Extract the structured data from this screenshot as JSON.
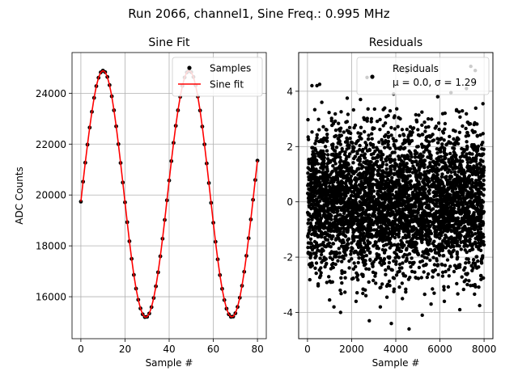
{
  "figure": {
    "suptitle": "Run 2066, channel1, Sine Freq.: 0.995 MHz"
  },
  "chart_data": [
    {
      "type": "line",
      "title": "Sine Fit",
      "xlabel": "Sample #",
      "ylabel": "ADC Counts",
      "xlim": [
        -4,
        84
      ],
      "ylim": [
        14350,
        25600
      ],
      "xticks": [
        0,
        20,
        40,
        60,
        80
      ],
      "yticks": [
        16000,
        18000,
        20000,
        22000,
        24000
      ],
      "grid": true,
      "legend": "top-right",
      "series": [
        {
          "name": "Samples",
          "kind": "scatter",
          "color": "#000000",
          "x": [
            0,
            1,
            2,
            3,
            4,
            5,
            6,
            7,
            8,
            9,
            10,
            11,
            12,
            13,
            14,
            15,
            16,
            17,
            18,
            19,
            20,
            21,
            22,
            23,
            24,
            25,
            26,
            27,
            28,
            29,
            30,
            31,
            32,
            33,
            34,
            35,
            36,
            37,
            38,
            39,
            40,
            41,
            42,
            43,
            44,
            45,
            46,
            47,
            48,
            49,
            50,
            51,
            52,
            53,
            54,
            55,
            56,
            57,
            58,
            59,
            60,
            61,
            62,
            63,
            64,
            65,
            66,
            67,
            68,
            69,
            70,
            71,
            72,
            73,
            74,
            75,
            76,
            77,
            78,
            79,
            80
          ],
          "y": [
            19740,
            20520,
            21270,
            21980,
            22650,
            23270,
            23820,
            24280,
            24610,
            24820,
            24890,
            24830,
            24640,
            24320,
            23880,
            23330,
            22700,
            22000,
            21260,
            20490,
            19710,
            18930,
            18180,
            17490,
            16860,
            16320,
            15880,
            15540,
            15310,
            15200,
            15210,
            15340,
            15590,
            15950,
            16410,
            16960,
            17590,
            18280,
            19020,
            19790,
            20570,
            21330,
            22050,
            22720,
            23330,
            23860,
            24290,
            24620,
            24820,
            24890,
            24830,
            24640,
            24310,
            23870,
            23320,
            22690,
            21990,
            21240,
            20470,
            19690,
            18910,
            18160,
            17470,
            16850,
            16310,
            15870,
            15530,
            15310,
            15210,
            15220,
            15350,
            15600,
            15960,
            16430,
            16980,
            17610,
            18300,
            19040,
            19810,
            20590,
            21350
          ]
        },
        {
          "name": "Sine fit",
          "kind": "line",
          "color": "#ff0000",
          "x": [
            0,
            1,
            2,
            3,
            4,
            5,
            6,
            7,
            8,
            9,
            10,
            11,
            12,
            13,
            14,
            15,
            16,
            17,
            18,
            19,
            20,
            21,
            22,
            23,
            24,
            25,
            26,
            27,
            28,
            29,
            30,
            31,
            32,
            33,
            34,
            35,
            36,
            37,
            38,
            39,
            40,
            41,
            42,
            43,
            44,
            45,
            46,
            47,
            48,
            49,
            50,
            51,
            52,
            53,
            54,
            55,
            56,
            57,
            58,
            59,
            60,
            61,
            62,
            63,
            64,
            65,
            66,
            67,
            68,
            69,
            70,
            71,
            72,
            73,
            74,
            75,
            76,
            77,
            78,
            79,
            80
          ],
          "y": [
            19740,
            20520,
            21270,
            21980,
            22650,
            23270,
            23820,
            24280,
            24610,
            24820,
            24890,
            24830,
            24640,
            24320,
            23880,
            23330,
            22700,
            22000,
            21260,
            20490,
            19710,
            18930,
            18180,
            17490,
            16860,
            16320,
            15880,
            15540,
            15310,
            15200,
            15210,
            15340,
            15590,
            15950,
            16410,
            16960,
            17590,
            18280,
            19020,
            19790,
            20570,
            21330,
            22050,
            22720,
            23330,
            23860,
            24290,
            24620,
            24820,
            24890,
            24830,
            24640,
            24310,
            23870,
            23320,
            22690,
            21990,
            21240,
            20470,
            19690,
            18910,
            18160,
            17470,
            16850,
            16310,
            15870,
            15530,
            15310,
            15210,
            15220,
            15350,
            15600,
            15960,
            16430,
            16980,
            17610,
            18300,
            19040,
            19810,
            20590,
            21350
          ]
        }
      ]
    },
    {
      "type": "scatter",
      "title": "Residuals",
      "xlabel": "Sample #",
      "ylabel": "",
      "xlim": [
        -400,
        8400
      ],
      "ylim": [
        -4.95,
        5.4
      ],
      "xticks": [
        0,
        2000,
        4000,
        6000,
        8000
      ],
      "yticks": [
        -4,
        -2,
        0,
        2,
        4
      ],
      "grid": true,
      "legend": "top-right",
      "n_points": 8000,
      "sigma": 1.29,
      "series": [
        {
          "name": "Residuals",
          "label_line2": "μ = 0.0, σ = 1.29",
          "color": "#000000",
          "x": [
            200,
            550,
            430,
            2700,
            4500,
            7400,
            7600,
            4600,
            3800,
            2800,
            5200,
            6900,
            1200,
            3300,
            1500,
            5600,
            7800,
            2200,
            6200,
            4300,
            1000,
            3900,
            6500,
            7200,
            650,
            2400,
            5900,
            1800,
            7950,
            3600
          ],
          "y": [
            4.2,
            4.25,
            4.2,
            4.5,
            4.7,
            4.9,
            4.75,
            -4.6,
            -4.4,
            -4.3,
            -4.1,
            -3.9,
            -3.8,
            -3.8,
            -4.0,
            -3.7,
            -3.75,
            -3.6,
            -3.6,
            -3.5,
            -3.55,
            3.9,
            3.95,
            4.1,
            3.6,
            3.7,
            3.8,
            3.75,
            3.55,
            -3.45
          ]
        }
      ]
    }
  ]
}
